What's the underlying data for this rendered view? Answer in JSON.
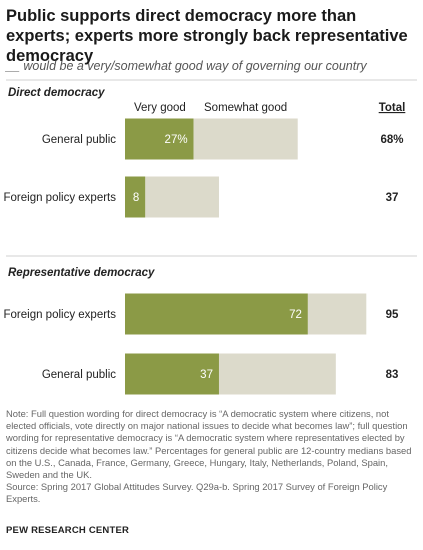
{
  "title": "Public supports direct democracy more than experts; experts more strongly back representative democracy",
  "subtitle": "__ would be a very/somewhat good way of governing our country",
  "colors": {
    "very_good": "#8b9a46",
    "somewhat_good": "#dcdacb",
    "label_on_bar": "#ffffff"
  },
  "chart_data": {
    "type": "bar",
    "orientation": "horizontal",
    "stacked": true,
    "legend": {
      "very_good": "Very good",
      "somewhat_good": "Somewhat good",
      "total": "Total"
    },
    "scale_max": 100,
    "panels": [
      {
        "title": "Direct democracy",
        "rows": [
          {
            "label": "General public",
            "very_good": 27,
            "very_good_label": "27%",
            "total": 68,
            "total_label": "68%"
          },
          {
            "label": "Foreign policy experts",
            "very_good": 8,
            "very_good_label": "8",
            "total": 37,
            "total_label": "37"
          }
        ]
      },
      {
        "title": "Representative democracy",
        "rows": [
          {
            "label": "Foreign policy experts",
            "very_good": 72,
            "very_good_label": "72",
            "total": 95,
            "total_label": "95"
          },
          {
            "label": "General public",
            "very_good": 37,
            "very_good_label": "37",
            "total": 83,
            "total_label": "83"
          }
        ]
      }
    ]
  },
  "note": "Note: Full question wording for direct democracy is “A democratic system where citizens, not elected officials, vote directly on major national issues to decide what becomes law”; full question wording for representative democracy is “A democratic system where representatives elected by citizens decide what becomes law.” Percentages for general public are 12-country medians based on the U.S., Canada, France, Germany, Greece, Hungary, Italy, Netherlands, Poland, Spain, Sweden and the UK.",
  "source": "Source: Spring 2017 Global Attitudes Survey. Q29a-b. Spring 2017 Survey of Foreign Policy Experts.",
  "footer": "PEW RESEARCH CENTER"
}
